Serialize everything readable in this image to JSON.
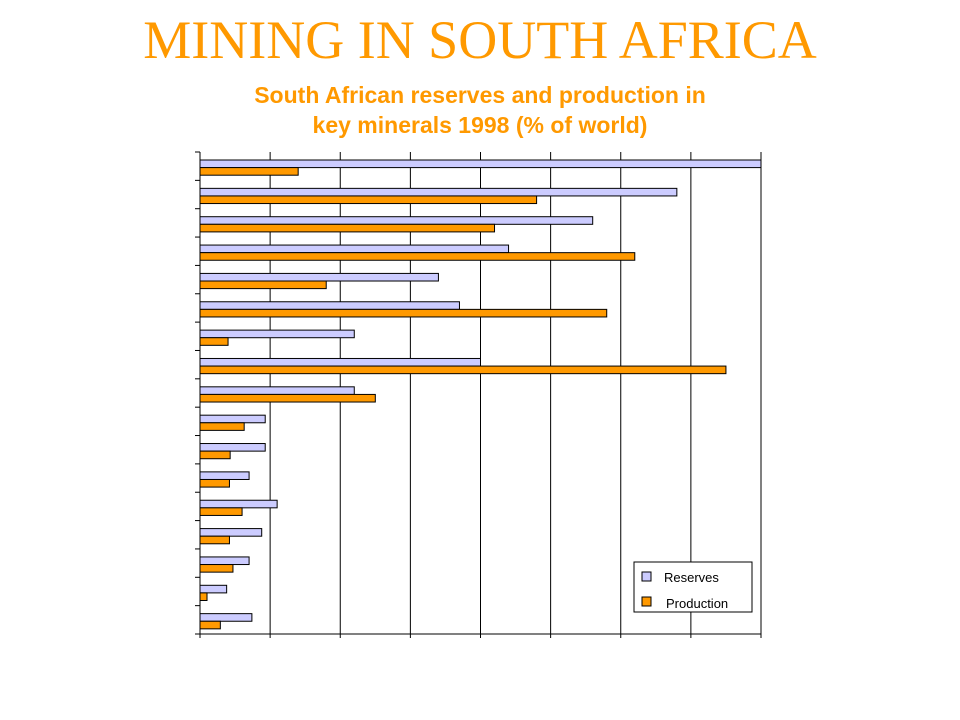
{
  "page": {
    "title": "MINING IN SOUTH AFRICA",
    "subtitle_line1": "South African reserves and production in",
    "subtitle_line2": "key minerals 1998 (% of world)"
  },
  "colors": {
    "title": "#FF9900",
    "reserves": "#CCCCFF",
    "production": "#FF9900",
    "stroke": "#000000"
  },
  "chart_data": {
    "type": "bar",
    "orientation": "horizontal",
    "categories": [
      "",
      "",
      "",
      "",
      "",
      "",
      "",
      "",
      "",
      "",
      "",
      "",
      "",
      "",
      "",
      "",
      ""
    ],
    "series": [
      {
        "name": "Reserves",
        "values": [
          80,
          68,
          56,
          44,
          34,
          37,
          22,
          40,
          22,
          9.3,
          9.3,
          7,
          11,
          8.8,
          7,
          3.8,
          7.4
        ]
      },
      {
        "name": "Production",
        "values": [
          14,
          48,
          42,
          62,
          18,
          58,
          4,
          75,
          25,
          6.3,
          4.3,
          4.2,
          6,
          4.2,
          4.7,
          1,
          2.9
        ]
      }
    ],
    "xlim": [
      0,
      80
    ],
    "x_gridlines": 8,
    "grid": true,
    "tick_labels_visible": false,
    "legend_position": "bottom-right",
    "legend": [
      "Reserves",
      "Production"
    ]
  }
}
